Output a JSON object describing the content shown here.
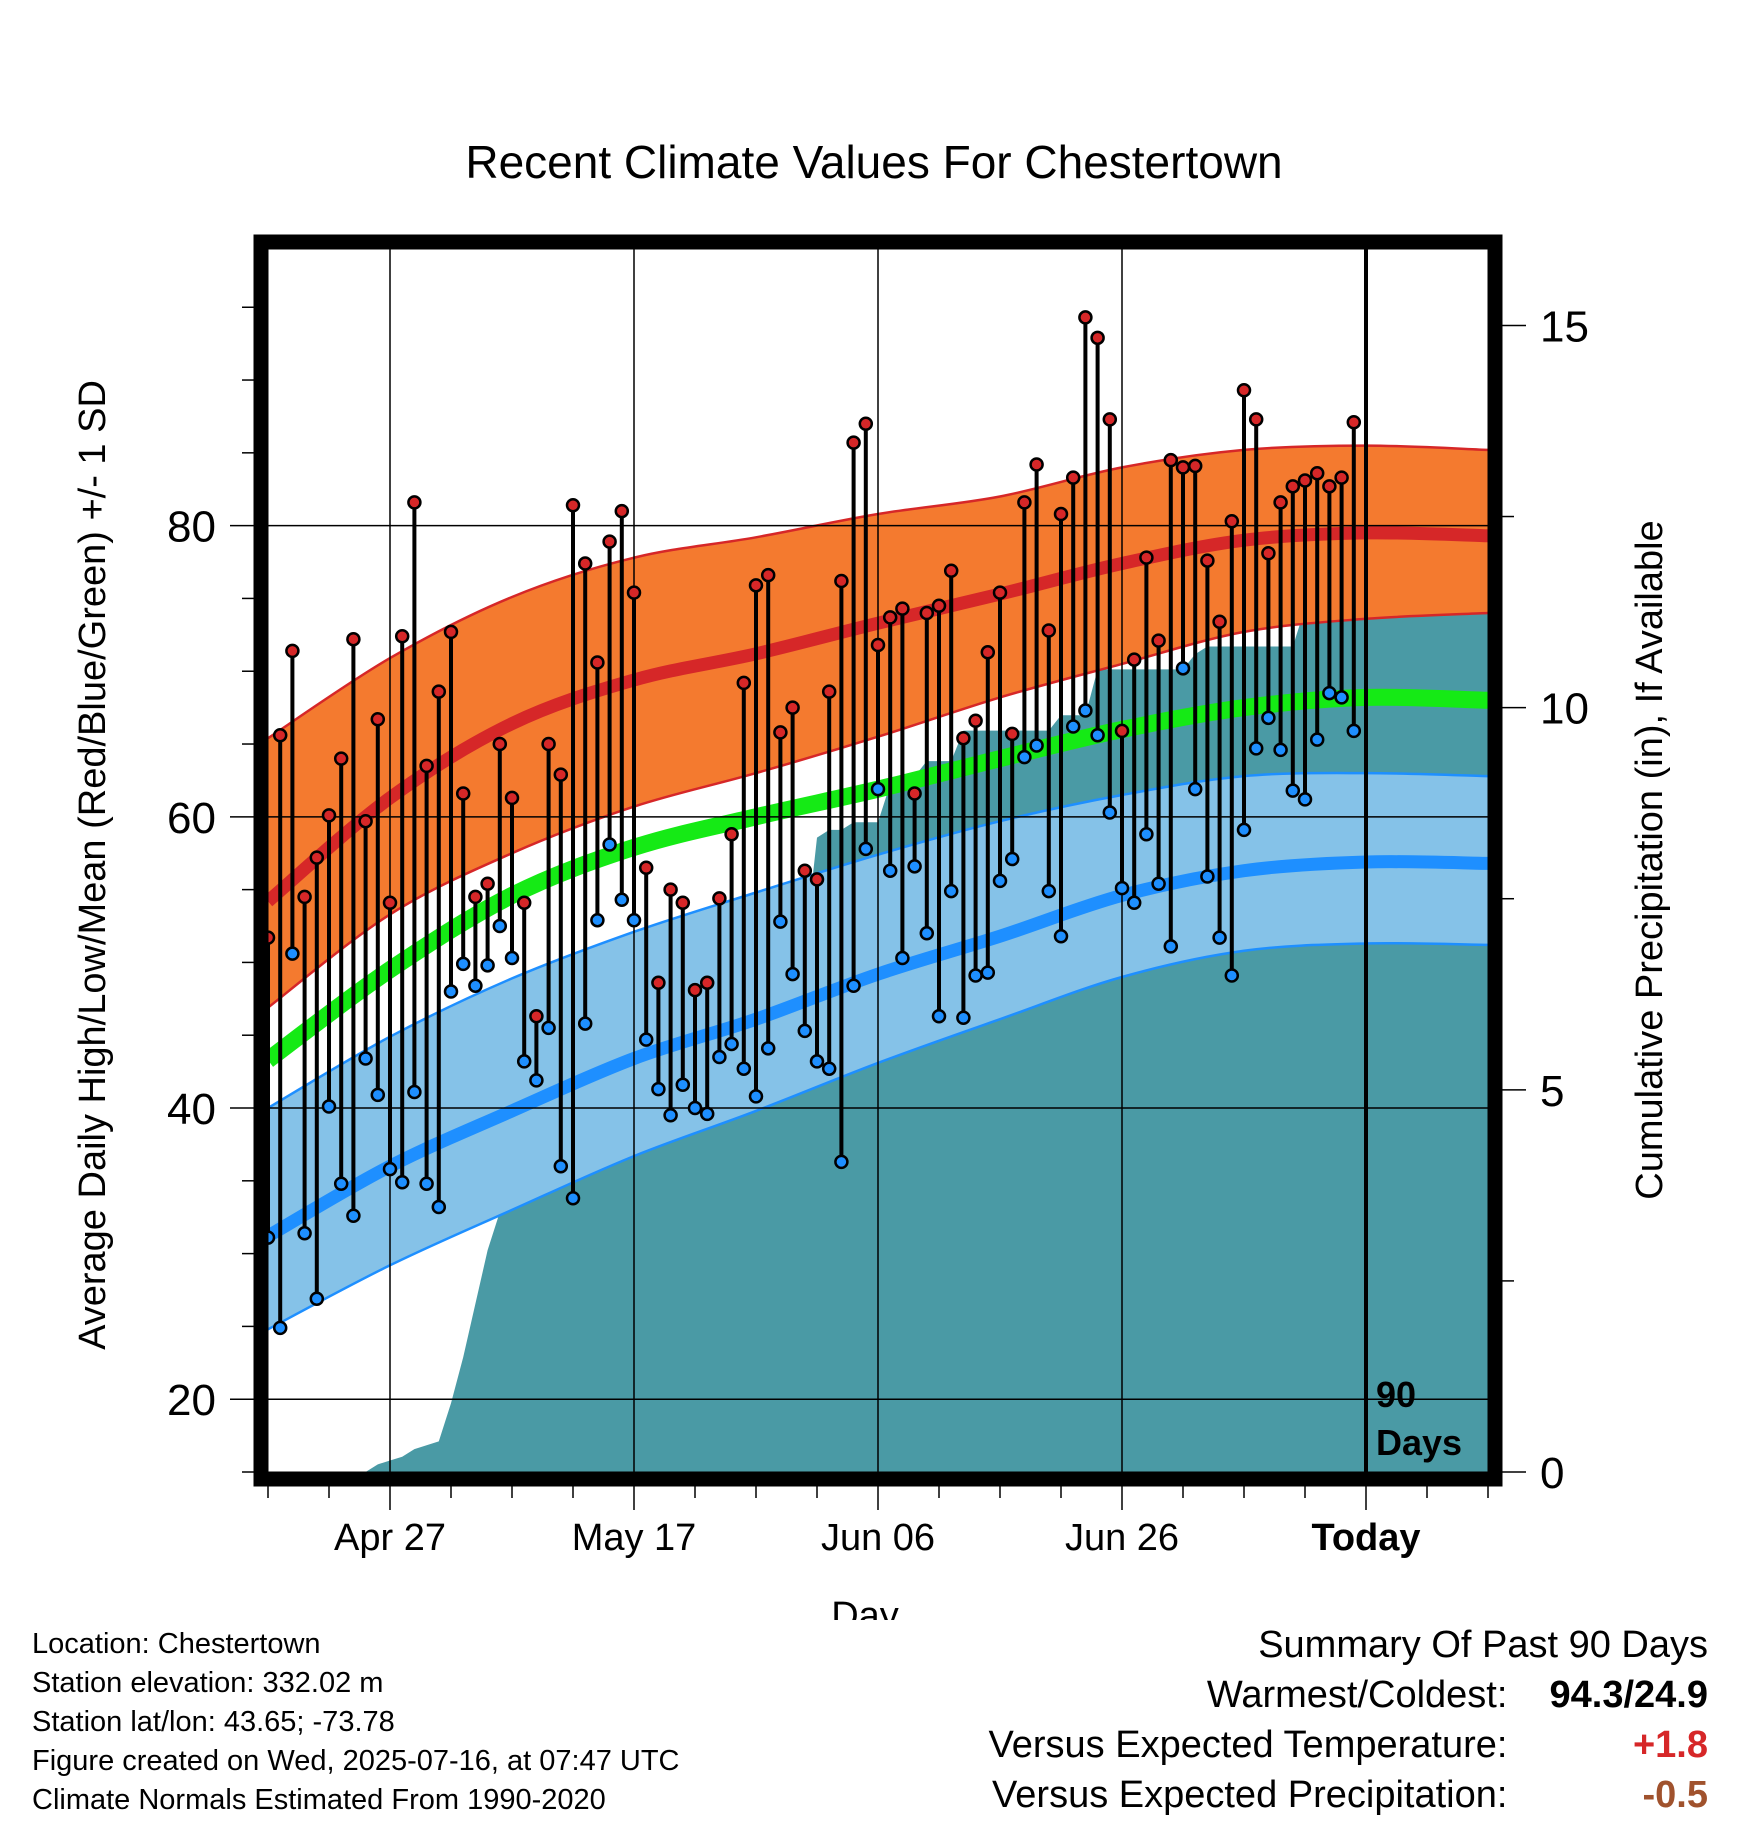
{
  "chart_data": {
    "type": "line",
    "title": "Recent Climate Values For Chestertown",
    "xlabel": "Day",
    "ylabel_left": "Average Daily High/Low/Mean (Red/Blue/Green) +/- 1 SD",
    "ylabel_right": "Cumulative Precipitation (in), If Available",
    "x_range_days": [
      -90,
      10
    ],
    "ylim_left": [
      15,
      99
    ],
    "ylim_right": [
      0,
      16
    ],
    "x_ticks": [
      {
        "day": -80,
        "label": "Apr 27"
      },
      {
        "day": -60,
        "label": "May 17"
      },
      {
        "day": -40,
        "label": "Jun 06"
      },
      {
        "day": -20,
        "label": "Jun 26"
      },
      {
        "day": 0,
        "label": "Today"
      }
    ],
    "y_ticks_left": [
      20,
      40,
      60,
      80
    ],
    "y_ticks_right": [
      0,
      5,
      10,
      15
    ],
    "today_marker_label": [
      "90",
      "Days"
    ],
    "grid": true,
    "normals": {
      "days": [
        -90,
        -80,
        -70,
        -60,
        -50,
        -40,
        -30,
        -20,
        -10,
        0,
        10
      ],
      "high_mean": [
        54.2,
        61.3,
        66.4,
        69.4,
        71.2,
        73.3,
        75.3,
        77.4,
        79.0,
        79.5,
        79.3
      ],
      "high_upper": [
        65.4,
        70.9,
        75.1,
        77.8,
        79.2,
        80.8,
        82.0,
        84.0,
        85.2,
        85.5,
        85.2
      ],
      "high_lower": [
        46.9,
        53.3,
        57.5,
        60.7,
        63.0,
        65.5,
        68.2,
        70.5,
        72.7,
        73.6,
        74.0
      ],
      "mean_mean": [
        43.3,
        49.5,
        54.6,
        57.9,
        60.0,
        61.9,
        64.0,
        66.0,
        67.5,
        68.2,
        68.0
      ],
      "low_mean": [
        31.2,
        36.0,
        39.8,
        43.4,
        46.1,
        49.2,
        51.8,
        54.6,
        56.3,
        56.9,
        56.8
      ],
      "low_upper": [
        40.0,
        44.9,
        48.9,
        52.1,
        54.8,
        57.4,
        59.7,
        61.5,
        62.8,
        63.0,
        62.8
      ],
      "low_lower": [
        24.8,
        29.2,
        33.0,
        36.7,
        39.8,
        43.1,
        46.1,
        49.0,
        50.8,
        51.3,
        51.2
      ]
    },
    "observed_days": [
      -90,
      -89,
      -88,
      -87,
      -86,
      -85,
      -84,
      -83,
      -82,
      -81,
      -80,
      -79,
      -78,
      -77,
      -76,
      -75,
      -74,
      -73,
      -72,
      -71,
      -70,
      -69,
      -68,
      -67,
      -66,
      -65,
      -64,
      -63,
      -62,
      -61,
      -60,
      -59,
      -58,
      -57,
      -56,
      -55,
      -54,
      -53,
      -52,
      -51,
      -50,
      -49,
      -48,
      -47,
      -46,
      -45,
      -44,
      -43,
      -42,
      -41,
      -40,
      -39,
      -38,
      -37,
      -36,
      -35,
      -34,
      -33,
      -32,
      -31,
      -30,
      -29,
      -28,
      -27,
      -26,
      -25,
      -24,
      -23,
      -22,
      -21,
      -20,
      -19,
      -18,
      -17,
      -16,
      -15,
      -14,
      -13,
      -12,
      -11,
      -10,
      -9,
      -8,
      -7,
      -6,
      -5,
      -4,
      -3,
      -2,
      -1
    ],
    "observed_high": [
      51.7,
      65.6,
      71.4,
      54.5,
      57.2,
      60.1,
      64.0,
      72.2,
      59.7,
      66.7,
      54.1,
      72.4,
      81.6,
      63.5,
      68.6,
      72.7,
      61.6,
      54.5,
      55.4,
      65.0,
      61.3,
      54.1,
      46.3,
      65.0,
      62.9,
      81.4,
      77.4,
      70.6,
      78.9,
      81.0,
      75.4,
      56.5,
      48.6,
      55.0,
      54.1,
      48.1,
      48.6,
      54.4,
      58.8,
      69.2,
      75.9,
      76.6,
      65.8,
      67.5,
      56.3,
      55.7,
      68.6,
      76.2,
      85.7,
      87.0,
      71.8,
      73.7,
      74.3,
      61.6,
      74.0,
      74.5,
      76.9,
      65.4,
      66.6,
      71.3,
      75.4,
      65.7,
      81.6,
      84.2,
      72.8,
      80.8,
      83.3,
      94.3,
      92.9,
      87.3,
      65.9,
      70.8,
      77.8,
      72.1,
      84.5,
      84.0,
      84.1,
      77.6,
      73.4,
      80.3,
      89.3,
      87.3,
      78.1,
      81.6,
      82.7,
      83.1,
      83.6,
      82.7,
      83.3,
      87.1
    ],
    "observed_low": [
      31.1,
      24.9,
      50.6,
      31.4,
      26.9,
      40.1,
      34.8,
      32.6,
      43.4,
      40.9,
      35.8,
      34.9,
      41.1,
      34.8,
      33.2,
      48.0,
      49.9,
      48.4,
      49.8,
      52.5,
      50.3,
      43.2,
      41.9,
      45.5,
      36.0,
      33.8,
      45.8,
      52.9,
      58.1,
      54.3,
      52.9,
      44.7,
      41.3,
      39.5,
      41.6,
      40.0,
      39.6,
      43.5,
      44.4,
      42.7,
      40.8,
      44.1,
      52.8,
      49.2,
      45.3,
      43.2,
      42.7,
      36.3,
      48.4,
      57.8,
      61.9,
      56.3,
      50.3,
      56.6,
      52.0,
      46.3,
      54.9,
      46.2,
      49.1,
      49.3,
      55.6,
      57.1,
      64.1,
      64.9,
      54.9,
      51.8,
      66.2,
      67.3,
      65.6,
      60.3,
      55.1,
      54.1,
      58.8,
      55.4,
      51.1,
      70.2,
      61.9,
      55.9,
      51.7,
      49.1,
      59.1,
      64.7,
      66.8,
      64.6,
      61.8,
      61.2,
      65.3,
      68.5,
      68.2,
      65.9
    ],
    "precip_cumulative": [
      0.0,
      0.0,
      0.0,
      0.0,
      0.0,
      0.0,
      0.0,
      0.0,
      0.0,
      0.1,
      0.15,
      0.2,
      0.3,
      0.35,
      0.4,
      0.9,
      1.5,
      2.2,
      2.9,
      3.4,
      3.5,
      3.6,
      4.6,
      5.1,
      5.2,
      5.2,
      5.2,
      5.2,
      5.2,
      5.2,
      5.2,
      6.2,
      6.3,
      6.3,
      6.4,
      6.5,
      6.6,
      6.7,
      6.75,
      6.8,
      6.85,
      6.85,
      6.85,
      6.85,
      6.85,
      8.3,
      8.4,
      8.4,
      8.5,
      8.5,
      8.5,
      9.0,
      9.1,
      9.1,
      9.3,
      9.3,
      9.3,
      9.7,
      9.7,
      9.7,
      9.7,
      9.7,
      9.7,
      9.7,
      9.7,
      9.9,
      9.9,
      9.9,
      10.5,
      10.5,
      10.5,
      10.5,
      10.5,
      10.5,
      10.5,
      10.5,
      10.7,
      10.8,
      10.8,
      10.8,
      10.8,
      10.8,
      10.8,
      10.8,
      10.8,
      11.3,
      11.5,
      11.6,
      11.7,
      11.8,
      11.8,
      11.8,
      11.8,
      11.8,
      11.8,
      11.8,
      11.8,
      11.8,
      11.8,
      11.8,
      11.8,
      11.8
    ],
    "precip_days_start": -90,
    "colors": {
      "high_band": "#f47a2f",
      "high_line": "#d62728",
      "high_edge": "#d62728",
      "mean_line": "#15ea15",
      "low_band": "#85c2e8",
      "low_line": "#1e8fff",
      "low_edge": "#1e8fff",
      "precip_fill": "#4a9aa5",
      "high_marker": "#d62728",
      "low_marker": "#1e8fff"
    }
  },
  "info": {
    "location": "Location: Chestertown",
    "elevation": "Station elevation: 332.02 m",
    "latlon": "Station lat/lon: 43.65; -73.78",
    "created": "Figure created on Wed, 2025-07-16, at 07:47 UTC",
    "normals": "Climate Normals Estimated From 1990-2020"
  },
  "summary": {
    "title": "Summary Of Past 90 Days",
    "warmest_label": "Warmest/Coldest:",
    "warmest_value": "94.3/24.9",
    "temp_label": "Versus Expected Temperature:",
    "temp_value": "+1.8",
    "precip_label": "Versus Expected Precipitation:",
    "precip_value": "-0.5"
  }
}
